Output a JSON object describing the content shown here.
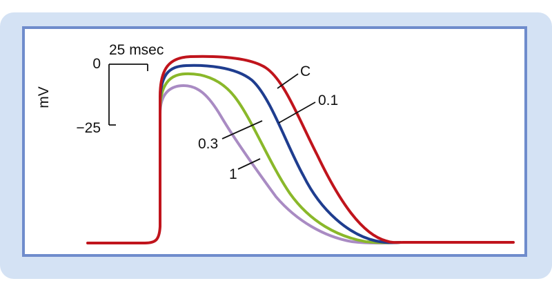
{
  "figure": {
    "y_unit": "mV",
    "scale_bar": {
      "time_label": "25 msec",
      "top_value_label": "0",
      "bottom_value_label": "−25"
    },
    "traces": [
      {
        "key": "c",
        "label": "C",
        "color": "#c0141c"
      },
      {
        "key": "p01",
        "label": "0.1",
        "color": "#1f3d8f"
      },
      {
        "key": "p03",
        "label": "0.3",
        "color": "#8ab82a"
      },
      {
        "key": "p1",
        "label": "1",
        "color": "#a98bc3"
      }
    ]
  },
  "colors": {
    "outer_panel": "#d4e2f4",
    "frame_border": "#6f8ccc",
    "frame_fill": "#ffffff"
  }
}
